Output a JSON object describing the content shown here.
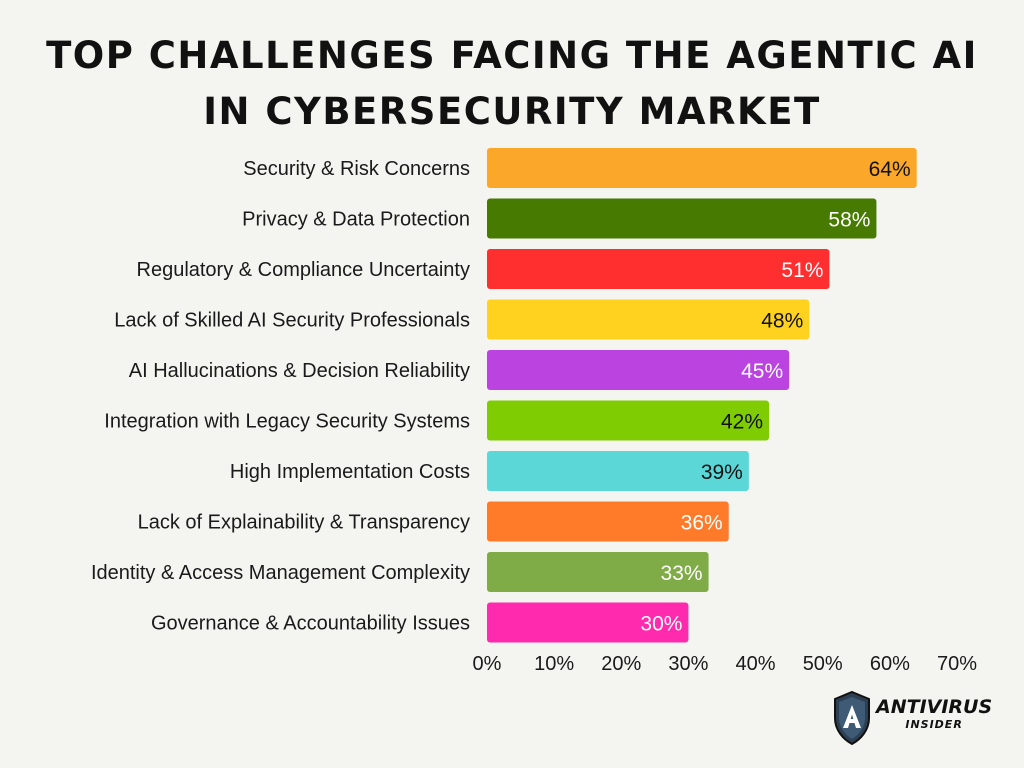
{
  "title_line1": "TOP CHALLENGES FACING THE AGENTIC AI",
  "title_line2": "IN CYBERSECURITY MARKET",
  "logo": {
    "line1": "ANTIVIRUS",
    "line2": "INSIDER",
    "icon": "shield-a-icon"
  },
  "chart_data": {
    "type": "bar",
    "orientation": "horizontal",
    "title": "TOP CHALLENGES FACING THE AGENTIC AI IN CYBERSECURITY MARKET",
    "categories": [
      "Security & Risk Concerns",
      "Privacy & Data Protection",
      "Regulatory & Compliance Uncertainty",
      "Lack of Skilled AI Security Professionals",
      "AI Hallucinations & Decision Reliability",
      "Integration with Legacy Security Systems",
      "High Implementation Costs",
      "Lack of Explainability & Transparency",
      "Identity & Access Management Complexity",
      "Governance & Accountability Issues"
    ],
    "values": [
      64,
      58,
      51,
      48,
      45,
      42,
      39,
      36,
      33,
      30
    ],
    "value_labels": [
      "64%",
      "58%",
      "51%",
      "48%",
      "45%",
      "42%",
      "39%",
      "36%",
      "33%",
      "30%"
    ],
    "colors": [
      "#fba82a",
      "#467a00",
      "#ff2f2f",
      "#ffd21f",
      "#bb44e0",
      "#7fcc03",
      "#5bd7d7",
      "#ff7b2a",
      "#7fac47",
      "#ff2aad"
    ],
    "label_colors": [
      "#111111",
      "#ffffff",
      "#ffffff",
      "#111111",
      "#ffffff",
      "#111111",
      "#111111",
      "#ffffff",
      "#ffffff",
      "#ffffff"
    ],
    "xlim": [
      0,
      70
    ],
    "xticks": [
      "0%",
      "10%",
      "20%",
      "30%",
      "40%",
      "50%",
      "60%",
      "70%"
    ],
    "xlabel": "",
    "ylabel": "",
    "grid": false,
    "legend": "none"
  }
}
